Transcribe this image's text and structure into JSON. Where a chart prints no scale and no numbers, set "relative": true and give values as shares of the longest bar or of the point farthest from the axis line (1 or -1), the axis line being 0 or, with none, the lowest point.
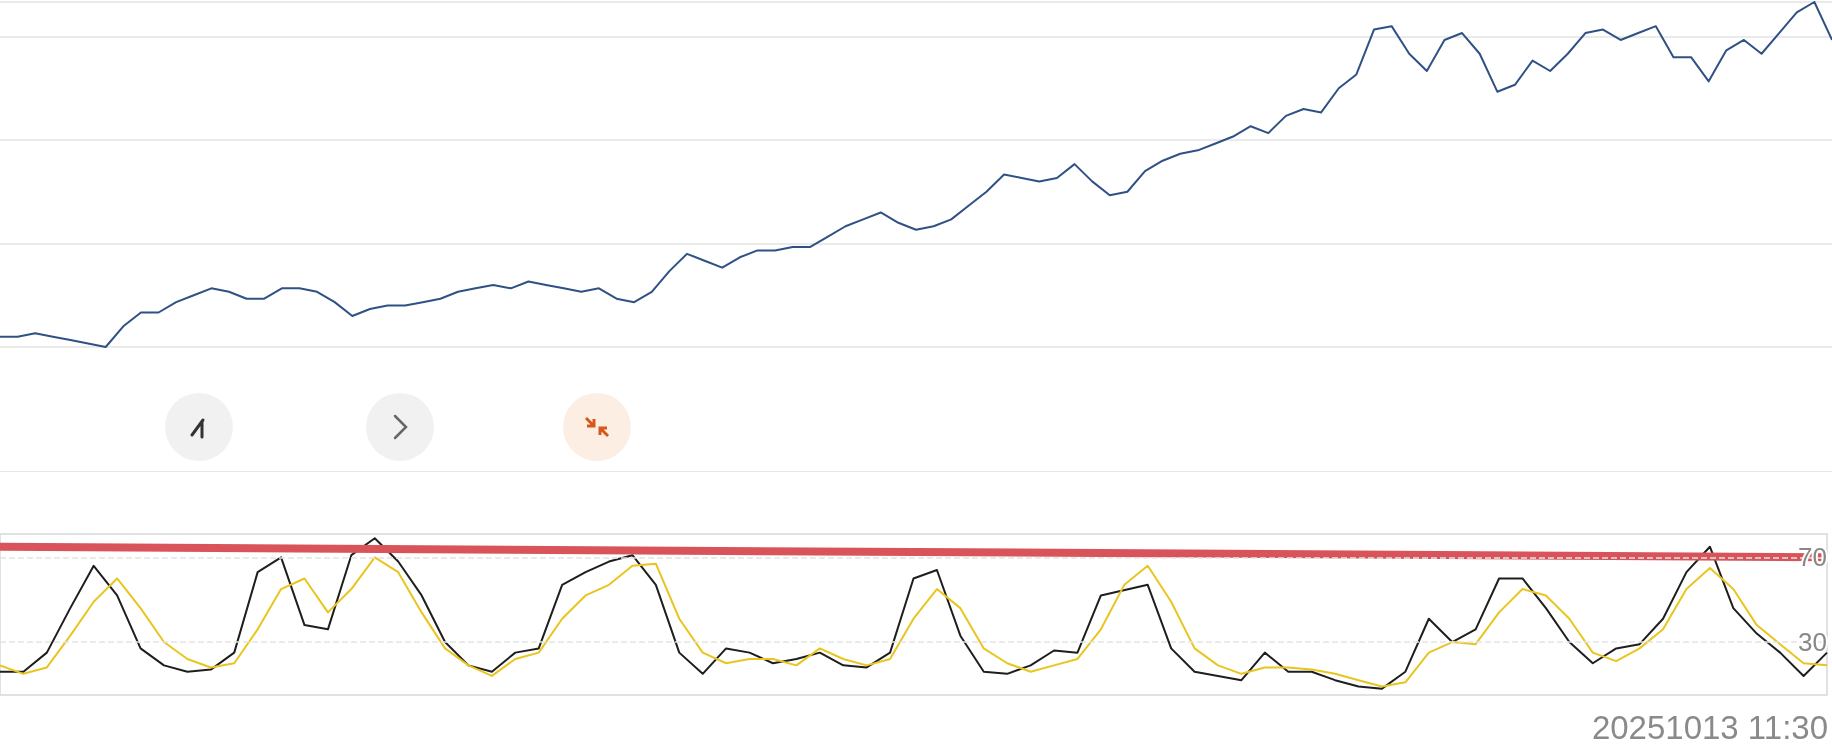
{
  "chart_data": [
    {
      "type": "line",
      "relative": true,
      "grid": "y",
      "tick_labels": false,
      "categories": [
        null,
        null,
        null,
        null,
        null,
        null,
        null,
        null,
        null,
        null,
        null,
        null,
        null,
        null,
        null,
        null,
        null,
        null,
        null,
        null,
        null,
        null,
        null,
        null,
        null,
        null,
        null,
        null,
        null,
        null,
        null,
        null,
        null,
        null,
        null,
        null,
        null,
        null,
        null,
        null,
        null,
        null,
        null,
        null,
        null,
        null,
        null,
        null,
        null,
        null,
        null,
        null,
        null,
        null,
        null,
        null,
        null,
        null,
        null,
        null,
        null,
        null,
        null,
        null,
        null,
        null,
        null,
        null,
        null,
        null,
        null,
        null,
        null,
        null,
        null,
        null,
        null,
        null,
        null,
        null,
        null,
        null,
        null,
        null,
        null,
        null,
        null,
        null,
        null,
        null,
        null,
        null,
        null,
        null,
        null,
        null,
        null,
        null,
        null,
        null,
        null,
        null,
        null,
        null,
        null
      ],
      "series": [
        {
          "color": "#2f5184",
          "values": [
            0.03,
            0.03,
            0.04,
            0.03,
            0.02,
            0.01,
            0,
            0.06,
            0.1,
            0.1,
            0.13,
            0.15,
            0.17,
            0.16,
            0.14,
            0.14,
            0.17,
            0.17,
            0.16,
            0.13,
            0.09,
            0.11,
            0.12,
            0.12,
            0.13,
            0.14,
            0.16,
            0.17,
            0.18,
            0.17,
            0.19,
            0.18,
            0.17,
            0.16,
            0.17,
            0.14,
            0.13,
            0.16,
            0.22,
            0.27,
            0.25,
            0.23,
            0.26,
            0.28,
            0.28,
            0.29,
            0.29,
            0.32,
            0.35,
            0.37,
            0.39,
            0.36,
            0.34,
            0.35,
            0.37,
            0.41,
            0.45,
            0.5,
            0.49,
            0.48,
            0.49,
            0.53,
            0.48,
            0.44,
            0.45,
            0.51,
            0.54,
            0.56,
            0.57,
            0.59,
            0.61,
            0.64,
            0.62,
            0.67,
            0.69,
            0.68,
            0.75,
            0.79,
            0.92,
            0.93,
            0.85,
            0.8,
            0.89,
            0.91,
            0.85,
            0.74,
            0.76,
            0.83,
            0.8,
            0.85,
            0.91,
            0.92,
            0.89,
            0.91,
            0.93,
            0.84,
            0.84,
            0.77,
            0.86,
            0.89,
            0.85,
            0.91,
            0.97,
            1,
            0.89
          ]
        }
      ]
    },
    {
      "type": "line",
      "grid": "y",
      "tick_labels": "y",
      "ylim": [
        5,
        81
      ],
      "yticks": [
        30,
        70
      ],
      "categories": [
        null,
        null,
        null,
        null,
        null,
        null,
        null,
        null,
        null,
        null,
        null,
        null,
        null,
        null,
        null,
        null,
        null,
        null,
        null,
        null,
        null,
        null,
        null,
        null,
        null,
        null,
        null,
        null,
        null,
        null,
        null,
        null,
        null,
        null,
        null,
        null,
        null,
        null,
        null,
        null,
        null,
        null,
        null,
        null,
        null,
        null,
        null,
        null,
        null,
        null,
        null,
        null,
        null,
        null,
        null,
        null,
        null,
        null,
        null,
        null,
        null,
        null,
        null,
        null,
        null,
        null,
        null,
        null,
        null,
        null,
        null,
        null,
        null,
        null,
        null,
        null,
        null,
        null,
        null
      ],
      "series": [
        {
          "color": "#1e1e1e",
          "values": [
            16,
            16,
            25,
            46,
            66,
            52,
            27,
            19,
            16,
            17,
            25,
            63,
            70,
            38,
            36,
            71,
            79,
            68,
            52,
            30,
            19,
            16,
            25,
            27,
            57,
            63,
            68,
            71,
            57,
            25,
            15,
            27,
            25,
            20,
            22,
            25,
            19,
            18,
            25,
            60,
            64,
            33,
            16,
            15,
            19,
            26,
            25,
            52,
            null,
            57,
            27,
            16,
            14,
            12,
            25,
            16,
            16,
            12,
            9,
            8,
            16,
            41,
            30,
            36,
            60,
            60,
            46,
            30,
            20,
            27,
            29,
            41,
            63,
            75,
            46,
            34,
            25,
            14,
            25
          ]
        },
        {
          "color": "#e8c51f",
          "values": [
            19,
            15,
            18,
            33,
            49,
            60,
            46,
            30,
            22,
            18,
            20,
            36,
            55,
            60,
            44,
            55,
            70,
            63,
            44,
            27,
            19,
            14,
            22,
            25,
            41,
            52,
            57,
            66,
            67,
            41,
            25,
            20,
            22,
            22,
            19,
            27,
            22,
            19,
            22,
            41,
            55,
            46,
            27,
            20,
            16,
            19,
            22,
            36,
            57,
            66,
            49,
            27,
            19,
            15,
            18,
            18,
            17,
            15,
            12,
            9,
            11,
            25,
            30,
            29,
            44,
            55,
            52,
            41,
            25,
            21,
            27,
            36,
            55,
            65,
            55,
            38,
            29,
            20,
            19
          ]
        },
        {
          "color": "#d9545a",
          "values": [
            75,
            null,
            null,
            null,
            null,
            null,
            null,
            null,
            null,
            null,
            null,
            null,
            null,
            null,
            null,
            null,
            null,
            null,
            null,
            null,
            null,
            null,
            null,
            null,
            null,
            null,
            null,
            null,
            null,
            null,
            null,
            null,
            null,
            null,
            null,
            null,
            null,
            null,
            null,
            null,
            null,
            null,
            null,
            null,
            null,
            null,
            null,
            null,
            null,
            null,
            null,
            null,
            null,
            null,
            null,
            null,
            null,
            null,
            null,
            null,
            null,
            null,
            null,
            null,
            null,
            null,
            null,
            null,
            null,
            null,
            null,
            null,
            null,
            null,
            null,
            null,
            null,
            null,
            70
          ]
        }
      ],
      "annotations": [
        "20251013 11:30"
      ]
    }
  ]
}
